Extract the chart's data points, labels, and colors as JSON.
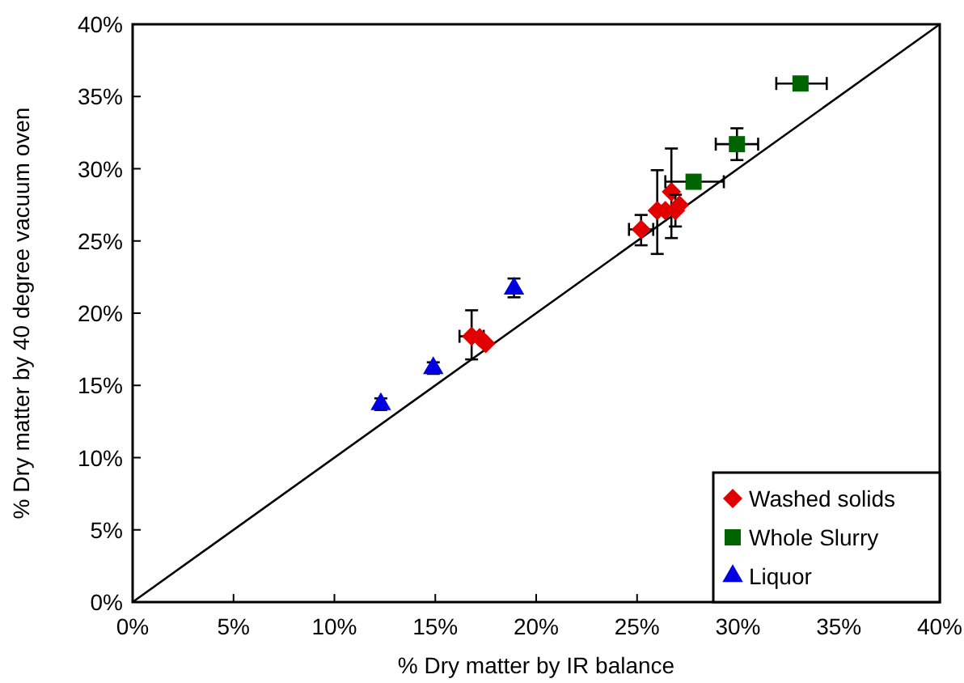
{
  "chart_data": {
    "type": "scatter",
    "xlabel": "% Dry matter by IR balance",
    "ylabel": "% Dry matter by 40 degree vacuum oven",
    "xlim": [
      0,
      40
    ],
    "ylim": [
      0,
      40
    ],
    "xticks": [
      {
        "value": 0,
        "label": "0%"
      },
      {
        "value": 5,
        "label": "5%"
      },
      {
        "value": 10,
        "label": "10%"
      },
      {
        "value": 15,
        "label": "15%"
      },
      {
        "value": 20,
        "label": "20%"
      },
      {
        "value": 25,
        "label": "25%"
      },
      {
        "value": 30,
        "label": "30%"
      },
      {
        "value": 35,
        "label": "35%"
      },
      {
        "value": 40,
        "label": "40%"
      }
    ],
    "yticks": [
      {
        "value": 0,
        "label": "0%"
      },
      {
        "value": 5,
        "label": "5%"
      },
      {
        "value": 10,
        "label": "10%"
      },
      {
        "value": 15,
        "label": "15%"
      },
      {
        "value": 20,
        "label": "20%"
      },
      {
        "value": 25,
        "label": "25%"
      },
      {
        "value": 30,
        "label": "30%"
      },
      {
        "value": 35,
        "label": "35%"
      },
      {
        "value": 40,
        "label": "40%"
      }
    ],
    "grid": false,
    "legend": "bottom right",
    "series": [
      {
        "type": "line",
        "color": "#000000",
        "marker": "none",
        "x": [
          0,
          40
        ],
        "values": [
          0,
          40
        ]
      },
      {
        "name": "Washed solids",
        "color": "#e00000",
        "marker": "diamond",
        "x": [
          25.2,
          16.8,
          17.2,
          17.5,
          26.0,
          26.4,
          26.7,
          26.9,
          27.1
        ],
        "values": [
          25.8,
          18.4,
          18.3,
          17.9,
          27.1,
          27.1,
          28.4,
          27.1,
          27.5
        ],
        "errors": [
          [
            24.7,
            26.8
          ],
          [
            16.8,
            20.2
          ],
          null,
          null,
          [
            24.1,
            29.9
          ],
          null,
          [
            25.2,
            31.4
          ],
          [
            26.0,
            28.2
          ],
          null
        ],
        "xerrors": [
          [
            24.6,
            25.8
          ],
          [
            16.2,
            17.4
          ],
          null,
          null,
          null,
          null,
          null,
          null,
          null
        ]
      },
      {
        "name": "Whole Slurry",
        "color": "#006400",
        "marker": "square",
        "x": [
          27.8,
          29.95,
          33.1
        ],
        "values": [
          29.1,
          31.7,
          35.9
        ],
        "errors": [
          null,
          [
            30.6,
            32.8
          ],
          null
        ],
        "xerrors": [
          [
            26.4,
            29.3
          ],
          [
            28.9,
            31.0
          ],
          [
            31.9,
            34.4
          ]
        ]
      },
      {
        "name": "Liquor",
        "color": "#0000e0",
        "marker": "triangle",
        "x": [
          12.3,
          14.9,
          18.9
        ],
        "values": [
          13.7,
          16.2,
          21.7
        ],
        "errors": [
          [
            13.3,
            14.1
          ],
          [
            15.8,
            16.6
          ],
          [
            21.1,
            22.4
          ]
        ],
        "xerrors": [
          null,
          null,
          null
        ]
      }
    ]
  }
}
